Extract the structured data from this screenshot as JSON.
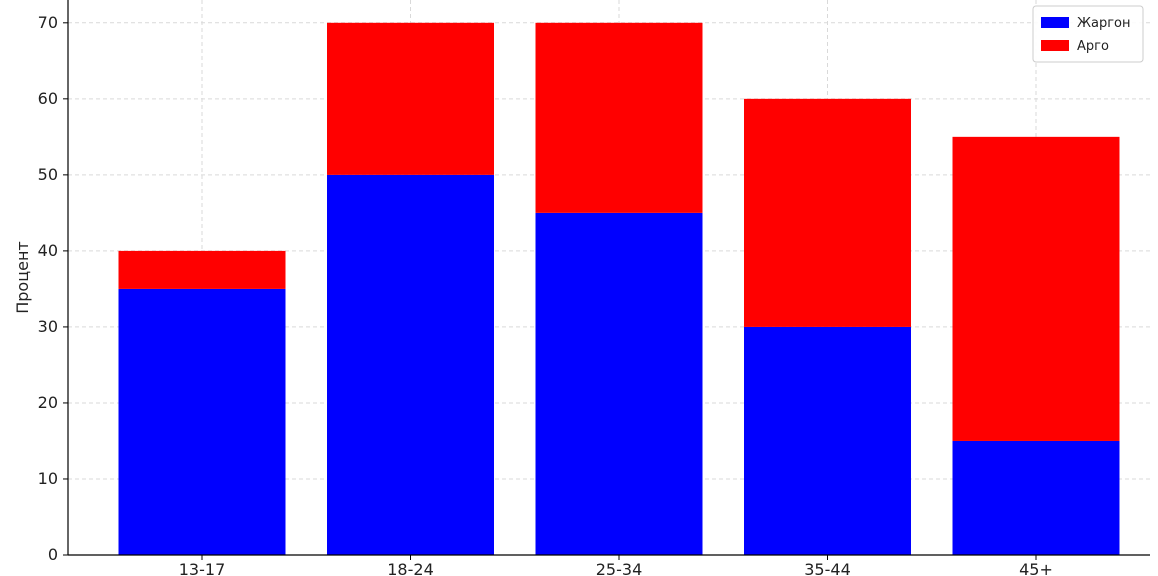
{
  "chart_data": {
    "type": "bar",
    "stacked": true,
    "title": "",
    "xlabel": "",
    "ylabel": "Процент",
    "categories": [
      "13-17",
      "18-24",
      "25-34",
      "35-44",
      "45+"
    ],
    "series": [
      {
        "name": "Жаргон",
        "color": "#0000ff",
        "values": [
          35,
          50,
          45,
          30,
          15
        ]
      },
      {
        "name": "Арго",
        "color": "#ff0000",
        "values": [
          5,
          20,
          25,
          30,
          40
        ]
      }
    ],
    "ylim": [
      0,
      73
    ],
    "yticks": [
      0,
      10,
      20,
      30,
      40,
      50,
      60,
      70
    ],
    "grid": true,
    "legend_position": "top-right"
  }
}
